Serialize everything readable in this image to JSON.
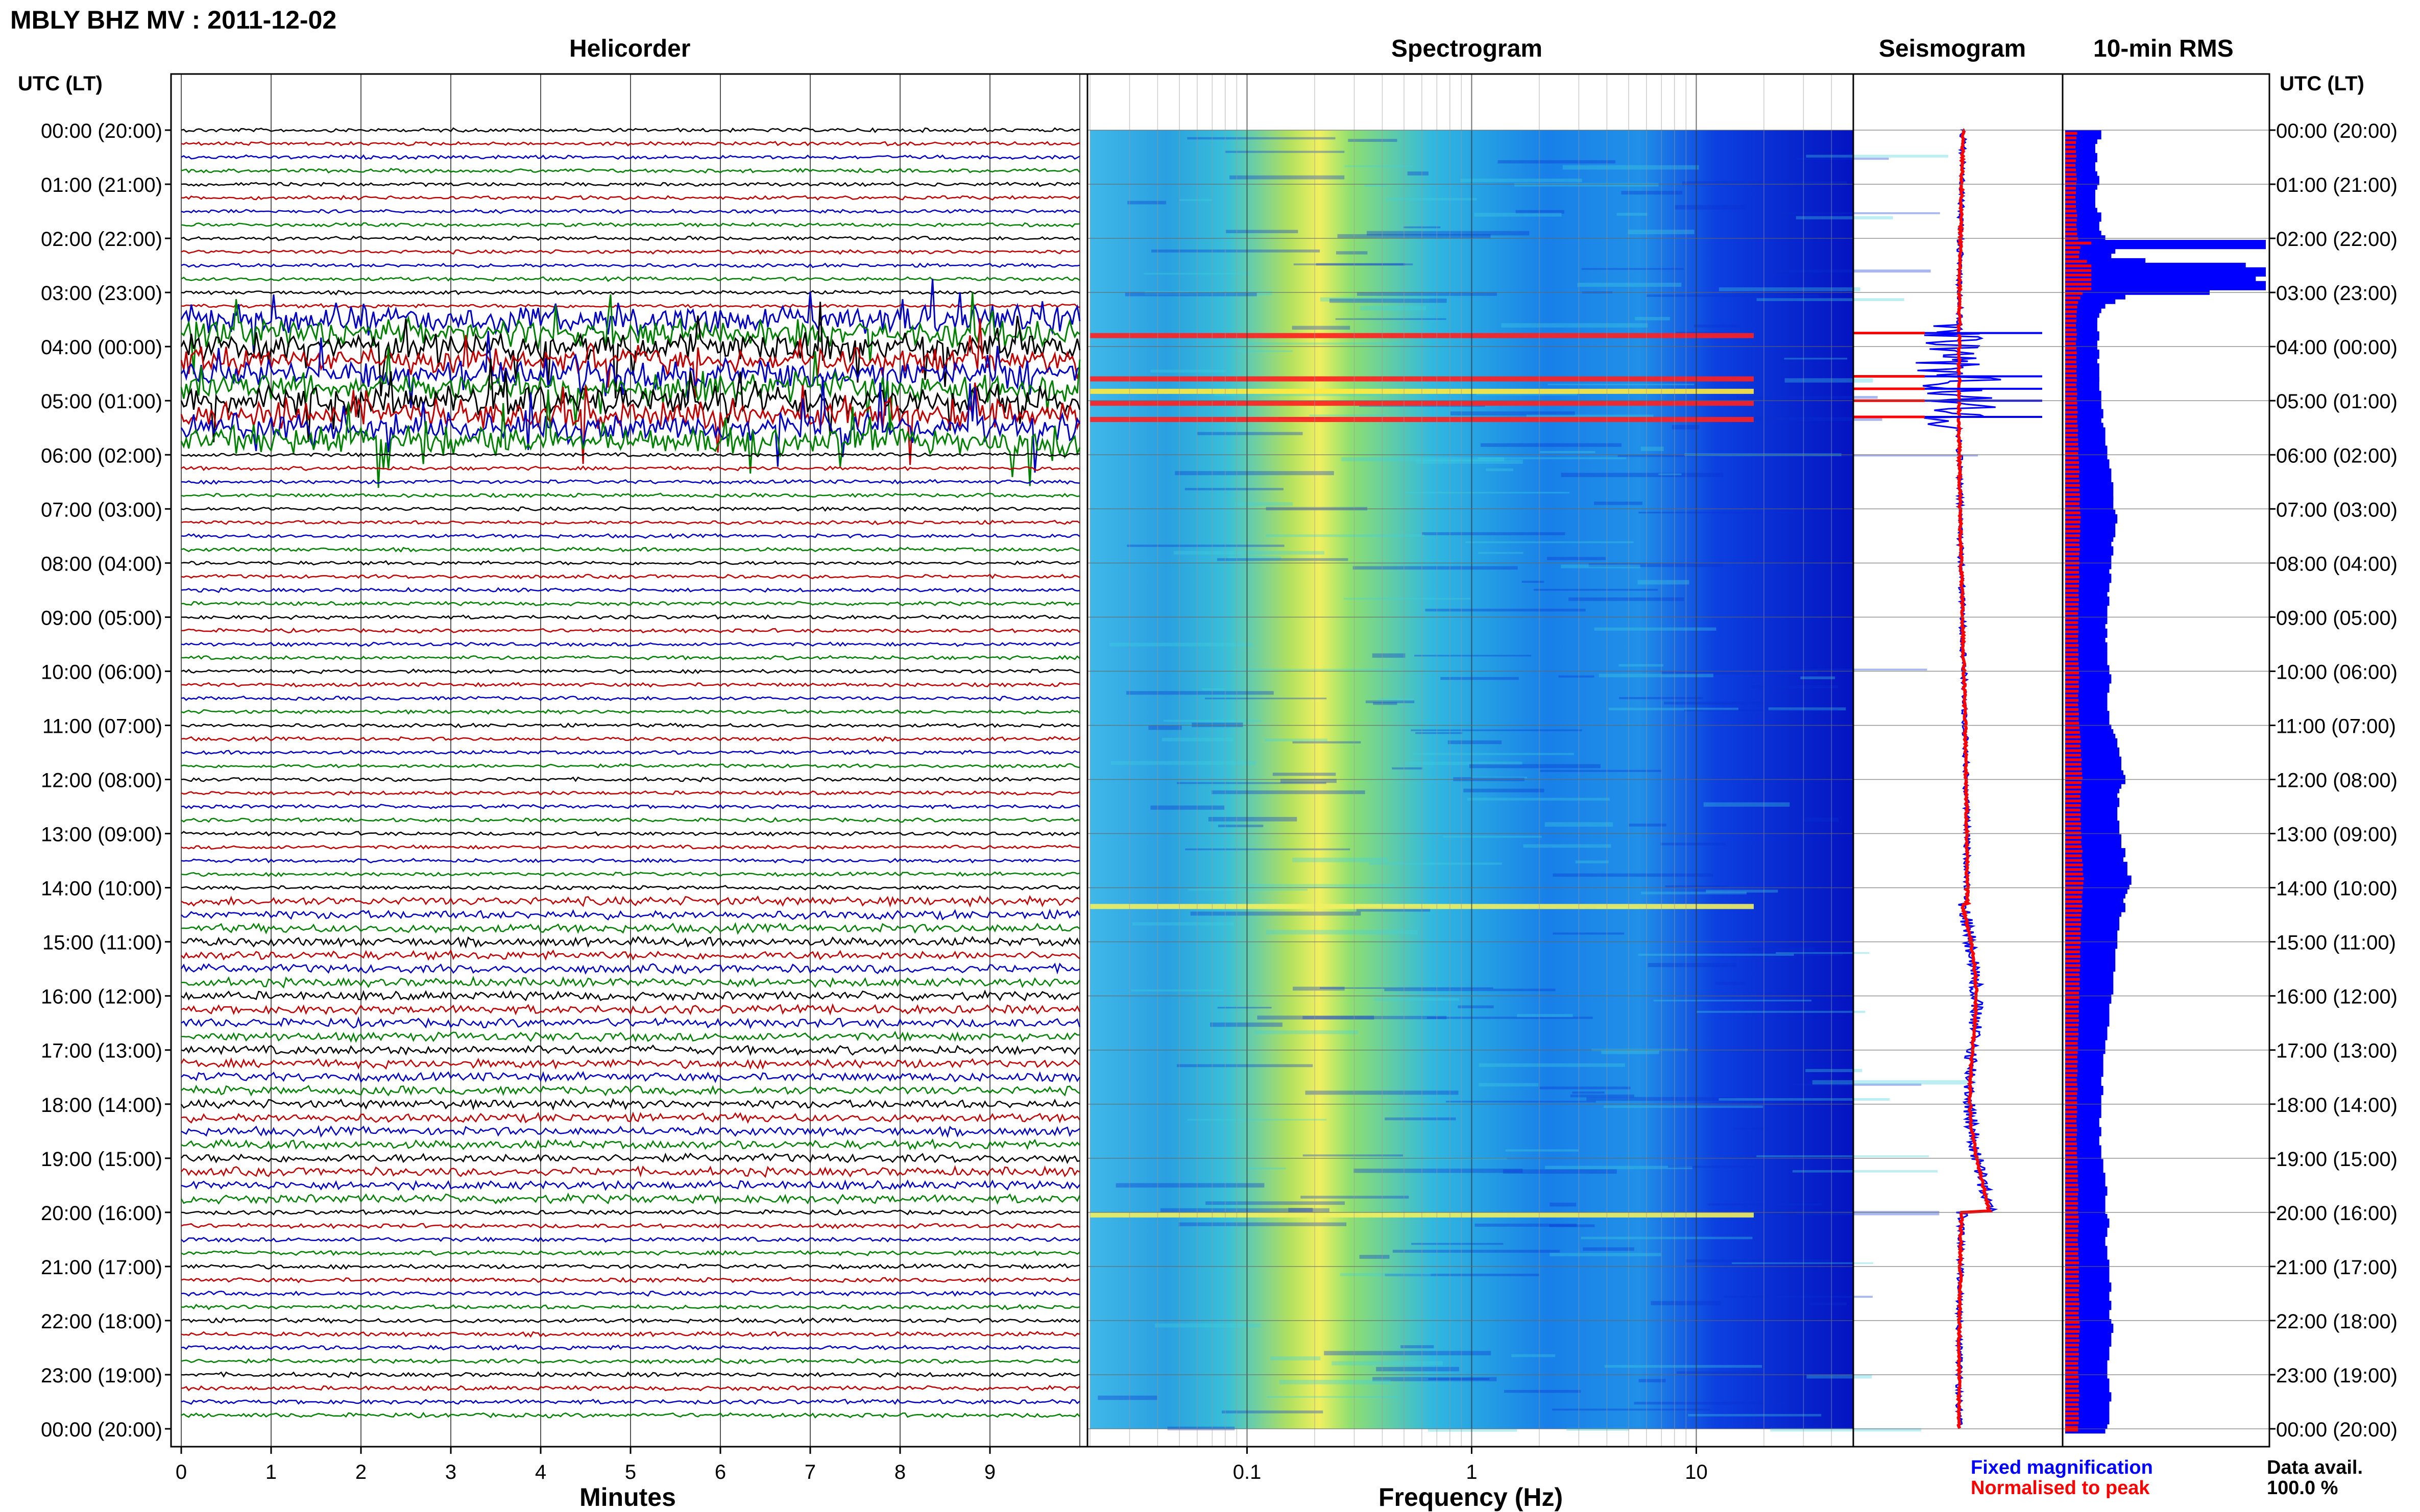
{
  "title": "MBLY BHZ MV : 2011-12-02",
  "panels": {
    "helicorder": "Helicorder",
    "spectrogram": "Spectrogram",
    "seismogram": "Seismogram",
    "rms": "10-min RMS"
  },
  "axis": {
    "time_header": "UTC (LT)",
    "minutes_label": "Minutes",
    "frequency_label": "Frequency (Hz)"
  },
  "time_labels": [
    "00:00 (20:00)",
    "01:00 (21:00)",
    "02:00 (22:00)",
    "03:00 (23:00)",
    "04:00 (00:00)",
    "05:00 (01:00)",
    "06:00 (02:00)",
    "07:00 (03:00)",
    "08:00 (04:00)",
    "09:00 (05:00)",
    "10:00 (06:00)",
    "11:00 (07:00)",
    "12:00 (08:00)",
    "13:00 (09:00)",
    "14:00 (10:00)",
    "15:00 (11:00)",
    "16:00 (12:00)",
    "17:00 (13:00)",
    "18:00 (14:00)",
    "19:00 (15:00)",
    "20:00 (16:00)",
    "21:00 (17:00)",
    "22:00 (18:00)",
    "23:00 (19:00)",
    "00:00 (20:00)"
  ],
  "minute_ticks": [
    "0",
    "1",
    "2",
    "3",
    "4",
    "5",
    "6",
    "7",
    "8",
    "9"
  ],
  "frequency_ticks": [
    "0.1",
    "1",
    "10"
  ],
  "legend": {
    "fixed": "Fixed magnification",
    "normalised": "Normalised to peak",
    "fixed_color": "#0000ff",
    "normalised_color": "#ff0000"
  },
  "data_avail": {
    "label": "Data avail.",
    "value": "100.0 %"
  },
  "chart_data": {
    "type": "heatmap",
    "time_range_hours": [
      0,
      24
    ],
    "minutes_range": [
      0,
      10
    ],
    "frequency_range_hz": [
      0.02,
      50
    ],
    "frequency_scale": "log",
    "trace_colors": [
      "#000000",
      "#c00000",
      "#0000c0",
      "#008000"
    ],
    "rms_fixed": [
      0.18,
      0.16,
      0.15,
      0.14,
      0.15,
      0.16,
      0.15,
      0.14,
      0.15,
      0.16,
      0.17,
      0.16,
      0.15,
      0.15,
      0.14,
      0.15,
      0.15,
      0.16,
      0.18,
      0.17,
      0.16,
      0.17,
      0.18,
      0.2,
      1.0,
      0.25,
      0.23,
      0.22,
      0.4,
      0.9,
      1.0,
      0.75,
      0.95,
      1.0,
      0.72,
      0.3,
      0.25,
      0.2,
      0.18,
      0.17,
      0.16,
      0.16,
      0.15,
      0.16,
      0.17,
      0.16,
      0.15,
      0.16,
      0.17,
      0.16,
      0.16,
      0.17,
      0.16,
      0.17,
      0.17,
      0.16,
      0.17,
      0.18,
      0.17,
      0.18,
      0.18,
      0.19,
      0.18,
      0.18,
      0.19,
      0.2,
      0.19,
      0.2,
      0.2,
      0.21,
      0.2,
      0.21,
      0.22,
      0.22,
      0.23,
      0.22,
      0.23,
      0.24,
      0.23,
      0.24,
      0.24,
      0.23,
      0.24,
      0.25,
      0.26,
      0.25,
      0.24,
      0.25,
      0.24,
      0.23,
      0.23,
      0.24,
      0.23,
      0.22,
      0.23,
      0.22,
      0.22,
      0.23,
      0.22,
      0.22,
      0.21,
      0.21,
      0.22,
      0.21,
      0.21,
      0.2,
      0.21,
      0.2,
      0.2,
      0.21,
      0.2,
      0.2,
      0.21,
      0.2,
      0.21,
      0.2,
      0.21,
      0.22,
      0.22,
      0.23,
      0.21,
      0.22,
      0.21,
      0.2,
      0.21,
      0.2,
      0.21,
      0.22,
      0.21,
      0.22,
      0.23,
      0.24,
      0.25,
      0.26,
      0.25,
      0.27,
      0.26,
      0.28,
      0.27,
      0.28,
      0.29,
      0.3,
      0.28,
      0.27,
      0.26,
      0.25,
      0.27,
      0.26,
      0.25,
      0.26,
      0.25,
      0.27,
      0.26,
      0.27,
      0.28,
      0.27,
      0.28,
      0.3,
      0.28,
      0.29,
      0.31,
      0.3,
      0.31,
      0.33,
      0.32,
      0.31,
      0.3,
      0.28,
      0.29,
      0.3,
      0.28,
      0.27,
      0.26,
      0.27,
      0.25,
      0.26,
      0.25,
      0.26,
      0.25,
      0.24,
      0.25,
      0.24,
      0.25,
      0.24,
      0.23,
      0.24,
      0.23,
      0.24,
      0.22,
      0.23,
      0.22,
      0.21,
      0.22,
      0.21,
      0.22,
      0.21,
      0.2,
      0.21,
      0.2,
      0.19,
      0.2,
      0.19,
      0.18,
      0.19,
      0.18,
      0.19,
      0.18,
      0.17,
      0.18,
      0.19,
      0.18,
      0.17,
      0.18,
      0.17,
      0.18,
      0.17,
      0.16,
      0.17,
      0.18,
      0.17,
      0.16,
      0.17,
      0.18,
      0.17,
      0.18,
      0.19,
      0.18,
      0.19,
      0.2,
      0.19,
      0.2,
      0.21,
      0.2,
      0.19,
      0.2,
      0.19,
      0.2,
      0.21,
      0.22,
      0.2,
      0.21,
      0.2,
      0.19,
      0.2,
      0.21,
      0.2,
      0.21,
      0.22,
      0.21,
      0.22,
      0.21,
      0.22,
      0.23,
      0.22,
      0.21,
      0.22,
      0.23,
      0.22,
      0.21,
      0.22,
      0.23,
      0.24,
      0.23,
      0.22,
      0.23,
      0.22,
      0.21,
      0.22,
      0.21,
      0.2,
      0.21,
      0.2,
      0.21,
      0.22,
      0.21,
      0.22,
      0.23,
      0.22,
      0.21,
      0.22,
      0.21,
      0.22,
      0.21,
      0.2
    ],
    "annotations": []
  }
}
